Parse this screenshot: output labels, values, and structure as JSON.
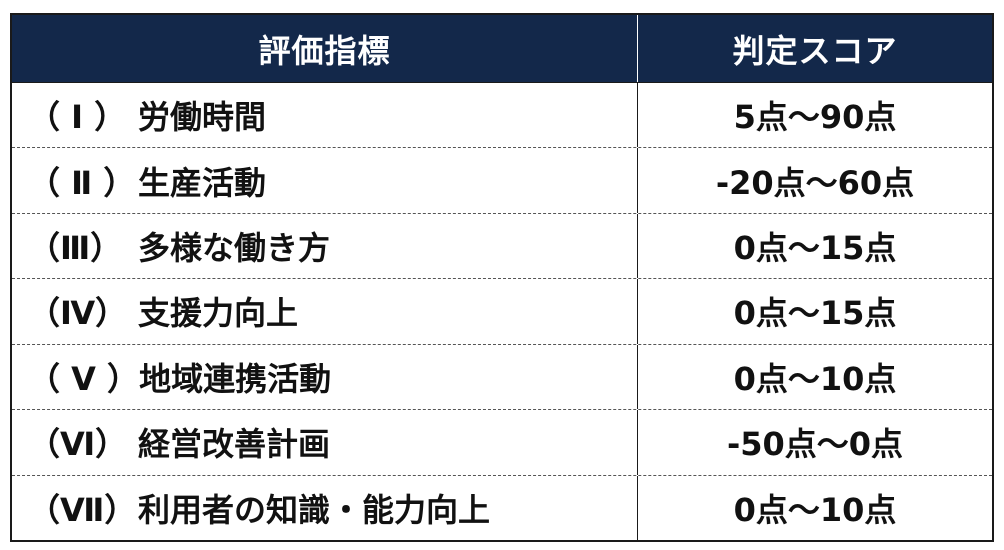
{
  "table": {
    "headers": {
      "metric": "評価指標",
      "score": "判定スコア"
    },
    "rows": [
      {
        "numeral": "（ Ⅰ ）",
        "metric": "労働時間",
        "score": "5点～90点"
      },
      {
        "numeral": "（ Ⅱ ）",
        "metric": "生産活動",
        "score": "-20点～60点"
      },
      {
        "numeral": "（Ⅲ）",
        "metric": "多様な働き方",
        "score": "0点～15点"
      },
      {
        "numeral": "（Ⅳ）",
        "metric": "支援力向上",
        "score": "0点～15点"
      },
      {
        "numeral": "（ Ⅴ ）",
        "metric": "地域連携活動",
        "score": "0点～10点"
      },
      {
        "numeral": "（Ⅵ）",
        "metric": "経営改善計画",
        "score": "-50点～0点"
      },
      {
        "numeral": "（Ⅶ）",
        "metric": "利用者の知識・能力向上",
        "score": "0点～10点"
      }
    ]
  },
  "colors": {
    "header_background": "#13284a",
    "header_text": "#ffffff",
    "body_text": "#111111"
  }
}
